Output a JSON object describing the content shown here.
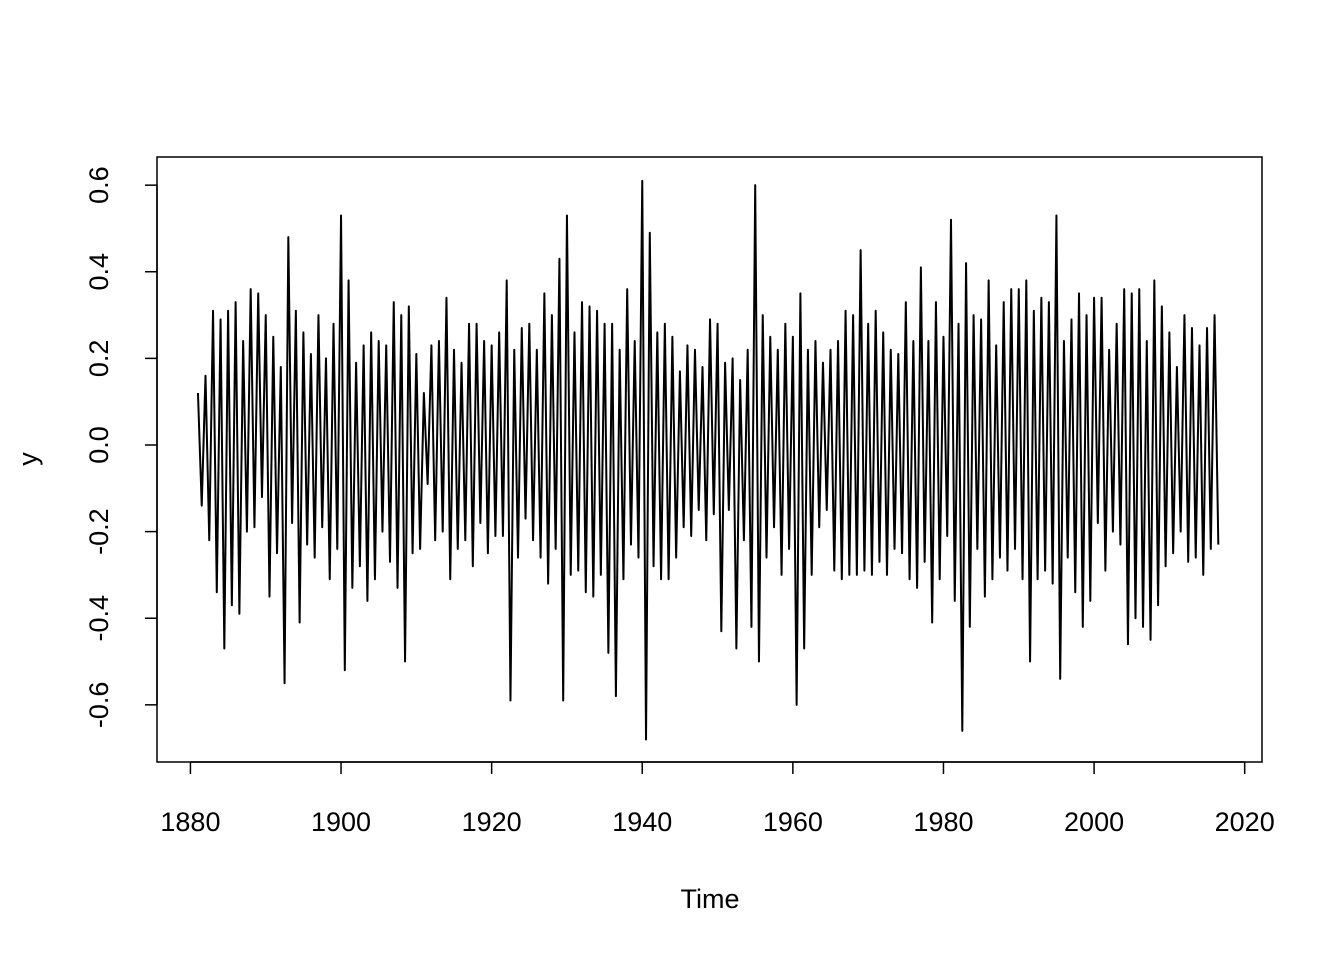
{
  "chart_data": {
    "type": "line",
    "x_label": "Time",
    "y_label": "y",
    "color": "#000000",
    "xlim": [
      1875.56,
      2022.3
    ],
    "ylim": [
      -0.732,
      0.665
    ],
    "xticks": [
      1880,
      1900,
      1920,
      1940,
      1960,
      1980,
      2000,
      2020
    ],
    "yticks": [
      -0.6,
      -0.4,
      -0.2,
      {
        "value": 0,
        "label": "0.0"
      },
      0.2,
      0.4,
      0.6
    ],
    "x": [
      1881,
      1881.5,
      1882,
      1882.5,
      1883,
      1883.5,
      1884,
      1884.5,
      1885,
      1885.5,
      1886,
      1886.5,
      1887,
      1887.5,
      1888,
      1888.5,
      1889,
      1889.5,
      1890,
      1890.5,
      1891,
      1891.5,
      1892,
      1892.5,
      1893,
      1893.5,
      1894,
      1894.5,
      1895,
      1895.5,
      1896,
      1896.5,
      1897,
      1897.5,
      1898,
      1898.5,
      1899,
      1899.5,
      1900,
      1900.5,
      1901,
      1901.5,
      1902,
      1902.5,
      1903,
      1903.5,
      1904,
      1904.5,
      1905,
      1905.5,
      1906,
      1906.5,
      1907,
      1907.5,
      1908,
      1908.5,
      1909,
      1909.5,
      1910,
      1910.5,
      1911,
      1911.5,
      1912,
      1912.5,
      1913,
      1913.5,
      1914,
      1914.5,
      1915,
      1915.5,
      1916,
      1916.5,
      1917,
      1917.5,
      1918,
      1918.5,
      1919,
      1919.5,
      1920,
      1920.5,
      1921,
      1921.5,
      1922,
      1922.5,
      1923,
      1923.5,
      1924,
      1924.5,
      1925,
      1925.5,
      1926,
      1926.5,
      1927,
      1927.5,
      1928,
      1928.5,
      1929,
      1929.5,
      1930,
      1930.5,
      1931,
      1931.5,
      1932,
      1932.5,
      1933,
      1933.5,
      1934,
      1934.5,
      1935,
      1935.5,
      1936,
      1936.5,
      1937,
      1937.5,
      1938,
      1938.5,
      1939,
      1939.5,
      1940,
      1940.5,
      1941,
      1941.5,
      1942,
      1942.5,
      1943,
      1943.5,
      1944,
      1944.5,
      1945,
      1945.5,
      1946,
      1946.5,
      1947,
      1947.5,
      1948,
      1948.5,
      1949,
      1949.5,
      1950,
      1950.5,
      1951,
      1951.5,
      1952,
      1952.5,
      1953,
      1953.5,
      1954,
      1954.5,
      1955,
      1955.5,
      1956,
      1956.5,
      1957,
      1957.5,
      1958,
      1958.5,
      1959,
      1959.5,
      1960,
      1960.5,
      1961,
      1961.5,
      1962,
      1962.5,
      1963,
      1963.5,
      1964,
      1964.5,
      1965,
      1965.5,
      1966,
      1966.5,
      1967,
      1967.5,
      1968,
      1968.5,
      1969,
      1969.5,
      1970,
      1970.5,
      1971,
      1971.5,
      1972,
      1972.5,
      1973,
      1973.5,
      1974,
      1974.5,
      1975,
      1975.5,
      1976,
      1976.5,
      1977,
      1977.5,
      1978,
      1978.5,
      1979,
      1979.5,
      1980,
      1980.5,
      1981,
      1981.5,
      1982,
      1982.5,
      1983,
      1983.5,
      1984,
      1984.5,
      1985,
      1985.5,
      1986,
      1986.5,
      1987,
      1987.5,
      1988,
      1988.5,
      1989,
      1989.5,
      1990,
      1990.5,
      1991,
      1991.5,
      1992,
      1992.5,
      1993,
      1993.5,
      1994,
      1994.5,
      1995,
      1995.5,
      1996,
      1996.5,
      1997,
      1997.5,
      1998,
      1998.5,
      1999,
      1999.5,
      2000,
      2000.5,
      2001,
      2001.5,
      2002,
      2002.5,
      2003,
      2003.5,
      2004,
      2004.5,
      2005,
      2005.5,
      2006,
      2006.5,
      2007,
      2007.5,
      2008,
      2008.5,
      2009,
      2009.5,
      2010,
      2010.5,
      2011,
      2011.5,
      2012,
      2012.5,
      2013,
      2013.5,
      2014,
      2014.5,
      2015,
      2015.5,
      2016,
      2016.5
    ],
    "values": [
      0.12,
      -0.14,
      0.16,
      -0.22,
      0.31,
      -0.34,
      0.29,
      -0.47,
      0.31,
      -0.37,
      0.33,
      -0.39,
      0.24,
      -0.2,
      0.36,
      -0.19,
      0.35,
      -0.12,
      0.3,
      -0.35,
      0.25,
      -0.25,
      0.18,
      -0.55,
      0.48,
      -0.18,
      0.31,
      -0.41,
      0.26,
      -0.23,
      0.21,
      -0.26,
      0.3,
      -0.19,
      0.2,
      -0.31,
      0.28,
      -0.24,
      0.53,
      -0.52,
      0.38,
      -0.33,
      0.19,
      -0.28,
      0.23,
      -0.36,
      0.26,
      -0.31,
      0.24,
      -0.2,
      0.23,
      -0.27,
      0.33,
      -0.33,
      0.3,
      -0.5,
      0.32,
      -0.25,
      0.21,
      -0.24,
      0.12,
      -0.09,
      0.23,
      -0.22,
      0.24,
      -0.2,
      0.34,
      -0.31,
      0.22,
      -0.24,
      0.19,
      -0.22,
      0.28,
      -0.28,
      0.28,
      -0.18,
      0.24,
      -0.25,
      0.23,
      -0.21,
      0.26,
      -0.21,
      0.38,
      -0.59,
      0.22,
      -0.26,
      0.27,
      -0.17,
      0.28,
      -0.22,
      0.22,
      -0.26,
      0.35,
      -0.32,
      0.3,
      -0.24,
      0.43,
      -0.59,
      0.53,
      -0.3,
      0.26,
      -0.29,
      0.33,
      -0.34,
      0.32,
      -0.35,
      0.31,
      -0.3,
      0.28,
      -0.48,
      0.28,
      -0.58,
      0.22,
      -0.31,
      0.36,
      -0.23,
      0.24,
      -0.26,
      0.61,
      -0.68,
      0.49,
      -0.28,
      0.26,
      -0.31,
      0.28,
      -0.31,
      0.25,
      -0.26,
      0.17,
      -0.19,
      0.23,
      -0.21,
      0.22,
      -0.15,
      0.18,
      -0.22,
      0.29,
      -0.16,
      0.28,
      -0.43,
      0.19,
      -0.15,
      0.2,
      -0.47,
      0.15,
      -0.22,
      0.22,
      -0.42,
      0.6,
      -0.5,
      0.3,
      -0.26,
      0.25,
      -0.19,
      0.22,
      -0.3,
      0.28,
      -0.24,
      0.25,
      -0.6,
      0.35,
      -0.47,
      0.22,
      -0.3,
      0.24,
      -0.19,
      0.19,
      -0.15,
      0.22,
      -0.29,
      0.24,
      -0.31,
      0.31,
      -0.3,
      0.3,
      -0.3,
      0.45,
      -0.29,
      0.28,
      -0.3,
      0.31,
      -0.27,
      0.26,
      -0.3,
      0.22,
      -0.24,
      0.21,
      -0.25,
      0.33,
      -0.31,
      0.24,
      -0.33,
      0.41,
      -0.27,
      0.24,
      -0.41,
      0.33,
      -0.31,
      0.25,
      -0.21,
      0.52,
      -0.36,
      0.28,
      -0.66,
      0.42,
      -0.42,
      0.3,
      -0.24,
      0.29,
      -0.35,
      0.38,
      -0.31,
      0.23,
      -0.26,
      0.33,
      -0.29,
      0.36,
      -0.24,
      0.36,
      -0.31,
      0.38,
      -0.5,
      0.31,
      -0.31,
      0.34,
      -0.29,
      0.33,
      -0.32,
      0.53,
      -0.54,
      0.24,
      -0.26,
      0.29,
      -0.34,
      0.35,
      -0.42,
      0.3,
      -0.36,
      0.34,
      -0.18,
      0.34,
      -0.29,
      0.22,
      -0.2,
      0.28,
      -0.23,
      0.36,
      -0.46,
      0.35,
      -0.4,
      0.36,
      -0.42,
      0.24,
      -0.45,
      0.38,
      -0.37,
      0.32,
      -0.28,
      0.26,
      -0.25,
      0.18,
      -0.2,
      0.3,
      -0.27,
      0.27,
      -0.26,
      0.23,
      -0.3,
      0.27,
      -0.24,
      0.3,
      -0.23
    ]
  }
}
